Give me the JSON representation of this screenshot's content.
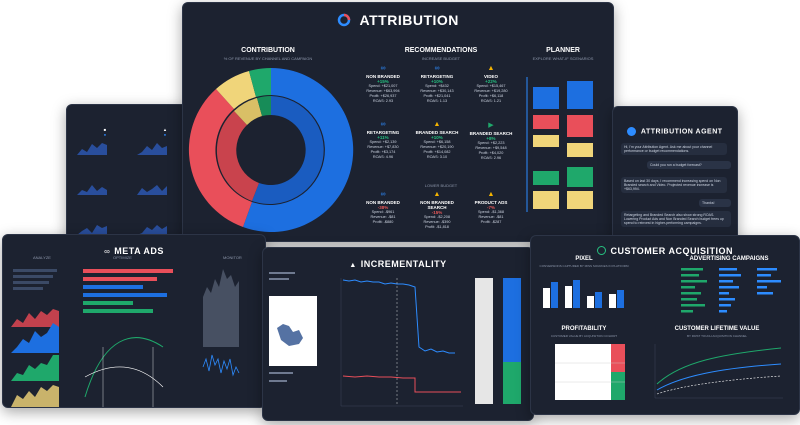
{
  "attribution": {
    "title": "ATTRIBUTION",
    "contribution": {
      "title": "CONTRIBUTION",
      "subtitle": "% OF REVENUE BY CHANNEL AND CAMPAIGN"
    },
    "recommendations": {
      "title": "RECOMMENDATIONS",
      "increase_label": "INCREASE BUDGET",
      "lower_label": "LOWER BUDGET",
      "increase": [
        {
          "name": "NON BRANDED",
          "delta": "+15%",
          "lines": [
            "Spend: +$21,007",
            "Revenue: +$63,994",
            "Profit: +$26,937",
            "ROAS: 2.93"
          ]
        },
        {
          "name": "RETARGETING",
          "delta": "+10%",
          "lines": [
            "Spend: +$432",
            "Revenue: +$30,143",
            "Profit: +$21,041",
            "ROAS: 1.13"
          ]
        },
        {
          "name": "VIDEO",
          "delta": "+22%",
          "lines": [
            "Spend: +$15,467",
            "Revenue: +$19,280",
            "Profit: +$6,118",
            "ROAS: 1.21"
          ]
        },
        {
          "name": "RETARGETING",
          "delta": "+11%",
          "lines": [
            "Spend: +$2,139",
            "Revenue: +$7,830",
            "Profit: +$3,174",
            "ROAS: 4.96"
          ]
        },
        {
          "name": "BRANDED SEARCH",
          "delta": "+10%",
          "lines": [
            "Spend: +$6,158",
            "Revenue: +$20,190",
            "Profit: +$14,082",
            "ROAS: 3.10"
          ]
        },
        {
          "name": "BRANDED SEARCH",
          "delta": "+8%",
          "lines": [
            "Spend: +$2,223",
            "Revenue: +$9,548",
            "Profit: +$4,020",
            "ROAS: 2.96"
          ]
        }
      ],
      "lower": [
        {
          "name": "NON BRANDED",
          "delta": "-38%",
          "lines": [
            "Spend: -$961",
            "Revenue: -$81",
            "Profit: -$880"
          ]
        },
        {
          "name": "NON BRANDED SEARCH",
          "delta": "-15%",
          "lines": [
            "Spend: -$2,208",
            "Revenue: -$390",
            "Profit: -$1,818"
          ]
        },
        {
          "name": "PRODUCT ADS",
          "delta": "-7%",
          "lines": [
            "Spend: -$1,368",
            "Revenue: -$81",
            "Profit: -$287"
          ]
        }
      ]
    },
    "planner": {
      "title": "PLANNER",
      "subtitle": "EXPLORE WHAT-IF SCENARIOS"
    }
  },
  "attribution_agent": {
    "title": "ATTRIBUTION AGENT",
    "messages": [
      "Hi, I'm your Attribution Agent. Ask me about your channel performance or budget recommendations.",
      "Could you run a budget forecast?",
      "Based on last 30 days, I recommend increasing spend on Non Branded search and Video. Projected revenue increase is +$63,994.",
      "Thanks!",
      "Retargeting and Branded Search also show strong ROAS. Lowering Product Ads and Non Branded Search budget frees up spend to reinvest in higher-performing campaigns."
    ]
  },
  "meta_ads": {
    "title": "META ADS",
    "analyze": "ANALYZE",
    "optimize": "OPTIMIZE",
    "monitor": "MONITOR"
  },
  "incrementality": {
    "title": "INCREMENTALITY"
  },
  "customer_acquisition": {
    "title": "CUSTOMER ACQUISITION",
    "pixel": "PIXEL",
    "pixel_sub": "CONVERSIONS CAPTURED BY MISS SOURCES IN PLATFORM",
    "campaigns": "ADVERTISING CAMPAIGNS",
    "profitability": "PROFITABILITY",
    "profitability_sub": "CUSTOMER VALUE BY ACQUISITION COHORT",
    "ltv": "CUSTOMER LIFETIME VALUE",
    "ltv_sub": "BY FIRST TOUCH ACQUISITION CHANNEL"
  },
  "colors": {
    "panel": "#1c2230",
    "blue": "#1d6fe0",
    "red": "#e94f5a",
    "yellow": "#f0d57a",
    "green": "#1fa86b",
    "accent_green": "#26c281"
  }
}
